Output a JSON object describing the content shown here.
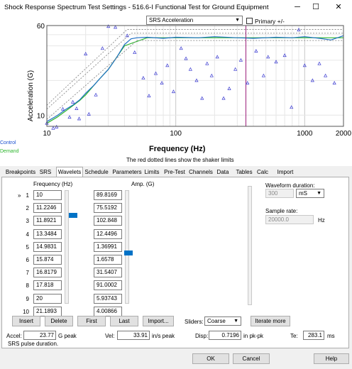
{
  "window": {
    "title": "Shock Response Spectrum Test Settings - 516.6-I Functional Test for Ground Equipment",
    "minimize": "─",
    "maximize": "☐",
    "close": "✕"
  },
  "chart_controls": {
    "view_select": "SRS Acceleration",
    "primary_label": "Primary +/-",
    "primary_checked": false
  },
  "chart_data": {
    "type": "line",
    "xlabel": "Frequency (Hz)",
    "ylabel": "Acceleration (G)",
    "x_scale": "log",
    "y_scale": "log",
    "xlim": [
      10,
      2000
    ],
    "ylim": [
      8,
      60
    ],
    "x_ticks": [
      "10",
      "100",
      "1000",
      "2000"
    ],
    "y_ticks": [
      "10",
      "60"
    ],
    "legend": [
      "Control",
      "Demand"
    ],
    "note": "The red dotted lines show the shaker limits",
    "marker_x": 350,
    "series": [
      {
        "name": "Demand",
        "color": "#2db52d",
        "x": [
          10,
          12,
          15,
          18,
          20,
          25,
          30,
          40,
          60,
          100,
          200,
          400,
          800,
          1500,
          2000
        ],
        "y": [
          8.5,
          9.6,
          11.5,
          13.4,
          15,
          20,
          25,
          40,
          47,
          47,
          47,
          47,
          47,
          47,
          47
        ]
      },
      {
        "name": "Control",
        "color": "#1f6fc4",
        "x": [
          10,
          12,
          14,
          16,
          18,
          20,
          23,
          26,
          30,
          35,
          40,
          45,
          50,
          60,
          80,
          100,
          150,
          200,
          300,
          400,
          600,
          800,
          1000,
          1300,
          1600,
          2000
        ],
        "y": [
          8.8,
          9.9,
          11.2,
          12.3,
          13.6,
          15.5,
          18,
          21,
          25,
          32,
          41,
          46,
          47,
          47.5,
          46.5,
          47.5,
          47,
          48,
          47,
          46.5,
          47.5,
          47,
          48,
          46.5,
          45,
          49
        ]
      },
      {
        "name": "Upper limit 1",
        "color": "#8a8a8a",
        "x": [
          10,
          42,
          2000
        ],
        "y": [
          12.2,
          55.5,
          55.5
        ]
      },
      {
        "name": "Upper limit 2",
        "color": "#8a8a8a",
        "x": [
          10,
          45,
          2000
        ],
        "y": [
          11.3,
          51.5,
          51.5
        ]
      },
      {
        "name": "Lower limit",
        "color": "#8a8a8a",
        "x": [
          10,
          50,
          2000
        ],
        "y": [
          9.2,
          44.5,
          44.5
        ]
      }
    ],
    "wavelets_scatter": {
      "name": "Wavelets",
      "color": "#3a3ad0",
      "points": [
        [
          10,
          8.5
        ],
        [
          11.2,
          7.7
        ],
        [
          11.9,
          7.9
        ],
        [
          13.3,
          11.3
        ],
        [
          15,
          9.6
        ],
        [
          15.9,
          13
        ],
        [
          17,
          11.4
        ],
        [
          17.8,
          9.3
        ],
        [
          20,
          34
        ],
        [
          21.2,
          10.2
        ],
        [
          24,
          15
        ],
        [
          27,
          38
        ],
        [
          30,
          59
        ],
        [
          34,
          58
        ],
        [
          38,
          62
        ],
        [
          42,
          49
        ],
        [
          48,
          35
        ],
        [
          56,
          21
        ],
        [
          62,
          14.7
        ],
        [
          70,
          23
        ],
        [
          78,
          19
        ],
        [
          86,
          27
        ],
        [
          96,
          16
        ],
        [
          110,
          38
        ],
        [
          120,
          31
        ],
        [
          130,
          25
        ],
        [
          145,
          20
        ],
        [
          160,
          14
        ],
        [
          175,
          28
        ],
        [
          190,
          22
        ],
        [
          210,
          32
        ],
        [
          235,
          14
        ],
        [
          260,
          17
        ],
        [
          290,
          25
        ],
        [
          320,
          30
        ],
        [
          360,
          19
        ],
        [
          420,
          36
        ],
        [
          480,
          22
        ],
        [
          520,
          32
        ],
        [
          600,
          29
        ],
        [
          700,
          33
        ],
        [
          790,
          11.7
        ],
        [
          900,
          55
        ],
        [
          1000,
          27
        ],
        [
          1150,
          20
        ],
        [
          1300,
          28
        ],
        [
          1450,
          22
        ],
        [
          1700,
          19
        ]
      ]
    }
  },
  "tabs": [
    "Breakpoints",
    "SRS",
    "Wavelets",
    "Schedule",
    "Parameters",
    "Limits",
    "Pre-Test",
    "Channels",
    "Data",
    "Tables",
    "Calc",
    "Import"
  ],
  "wavelets": {
    "col_freq": "Frequency (Hz)",
    "col_amp": "Amp. (G)",
    "current_row_marker": "»",
    "rows": [
      {
        "idx": "1",
        "freq": "10",
        "amp": "89.8169"
      },
      {
        "idx": "2",
        "freq": "11.2246",
        "amp": "75.5192"
      },
      {
        "idx": "3",
        "freq": "11.8921",
        "amp": "102.848"
      },
      {
        "idx": "4",
        "freq": "13.3484",
        "amp": "12.4496"
      },
      {
        "idx": "5",
        "freq": "14.9831",
        "amp": "1.36991"
      },
      {
        "idx": "6",
        "freq": "15.874",
        "amp": "1.6578"
      },
      {
        "idx": "7",
        "freq": "16.8179",
        "amp": "31.5407"
      },
      {
        "idx": "8",
        "freq": "17.818",
        "amp": "91.0002"
      },
      {
        "idx": "9",
        "freq": "20",
        "amp": "5.93743"
      },
      {
        "idx": "10",
        "freq": "21.1893",
        "amp": "4.00866"
      }
    ]
  },
  "waveform": {
    "duration_label": "Waveform duration:",
    "duration_value": "300",
    "duration_unit": "mS",
    "sample_rate_label": "Sample rate:",
    "sample_rate_value": "20000.0",
    "sample_rate_unit": "Hz"
  },
  "buttons": {
    "insert": "Insert",
    "delete": "Delete",
    "first": "First",
    "last": "Last",
    "import": "Import...",
    "sliders_label": "Sliders:",
    "sliders_value": "Coarse",
    "iterate": "Iterate more"
  },
  "stats": {
    "accel_label": "Accel:",
    "accel_value": "23.77",
    "accel_unit": "G peak",
    "vel_label": "Vel:",
    "vel_value": "33.91",
    "vel_unit": "in/s peak",
    "disp_label": "Disp:",
    "disp_value": "0.7196",
    "disp_unit": "in pk-pk",
    "te_label": "Te:",
    "te_value": "283.1",
    "te_unit": "ms",
    "status": "SRS pulse duration."
  },
  "footer": {
    "ok": "OK",
    "cancel": "Cancel",
    "help": "Help"
  }
}
